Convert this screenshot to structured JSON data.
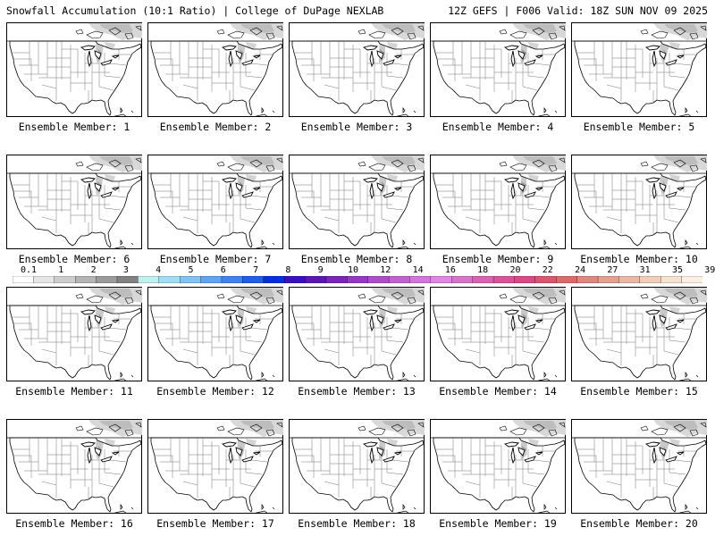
{
  "header": {
    "left": "Snowfall Accumulation (10:1 Ratio) | College of DuPage NEXLAB",
    "right": "12Z GEFS | F006 Valid: 18Z SUN NOV 09 2025"
  },
  "panels": [
    {
      "label": "Ensemble Member: 1",
      "member": 1
    },
    {
      "label": "Ensemble Member: 2",
      "member": 2
    },
    {
      "label": "Ensemble Member: 3",
      "member": 3
    },
    {
      "label": "Ensemble Member: 4",
      "member": 4
    },
    {
      "label": "Ensemble Member: 5",
      "member": 5
    },
    {
      "label": "Ensemble Member: 6",
      "member": 6
    },
    {
      "label": "Ensemble Member: 7",
      "member": 7
    },
    {
      "label": "Ensemble Member: 8",
      "member": 8
    },
    {
      "label": "Ensemble Member: 9",
      "member": 9
    },
    {
      "label": "Ensemble Member: 10",
      "member": 10
    },
    {
      "label": "Ensemble Member: 11",
      "member": 11
    },
    {
      "label": "Ensemble Member: 12",
      "member": 12
    },
    {
      "label": "Ensemble Member: 13",
      "member": 13
    },
    {
      "label": "Ensemble Member: 14",
      "member": 14
    },
    {
      "label": "Ensemble Member: 15",
      "member": 15
    },
    {
      "label": "Ensemble Member: 16",
      "member": 16
    },
    {
      "label": "Ensemble Member: 17",
      "member": 17
    },
    {
      "label": "Ensemble Member: 18",
      "member": 18
    },
    {
      "label": "Ensemble Member: 19",
      "member": 19
    },
    {
      "label": "Ensemble Member: 20",
      "member": 20
    }
  ],
  "colorbar": {
    "tick_labels": [
      "0.1",
      "1",
      "2",
      "3",
      "4",
      "5",
      "6",
      "7",
      "8",
      "9",
      "10",
      "12",
      "14",
      "16",
      "18",
      "20",
      "22",
      "24",
      "27",
      "31",
      "35",
      "39"
    ],
    "colors": [
      "#ffffff",
      "#e6e6e6",
      "#cdcdcd",
      "#b4b4b4",
      "#9b9b9b",
      "#828282",
      "#bfefef",
      "#9fdff5",
      "#7fc4f5",
      "#5fa6f2",
      "#3f84ee",
      "#1f5ee8",
      "#0030e0",
      "#3a10c0",
      "#5a18b0",
      "#7a24b8",
      "#9838c2",
      "#b04ccb",
      "#c55fd4",
      "#d673de",
      "#e285e6",
      "#d974c8",
      "#d863b2",
      "#d9539a",
      "#d84a82",
      "#d9566f",
      "#da6b6b",
      "#e08780",
      "#e6a090",
      "#ebb8a4",
      "#f0cdb8",
      "#f5e2d0",
      "#fbefe4"
    ]
  }
}
